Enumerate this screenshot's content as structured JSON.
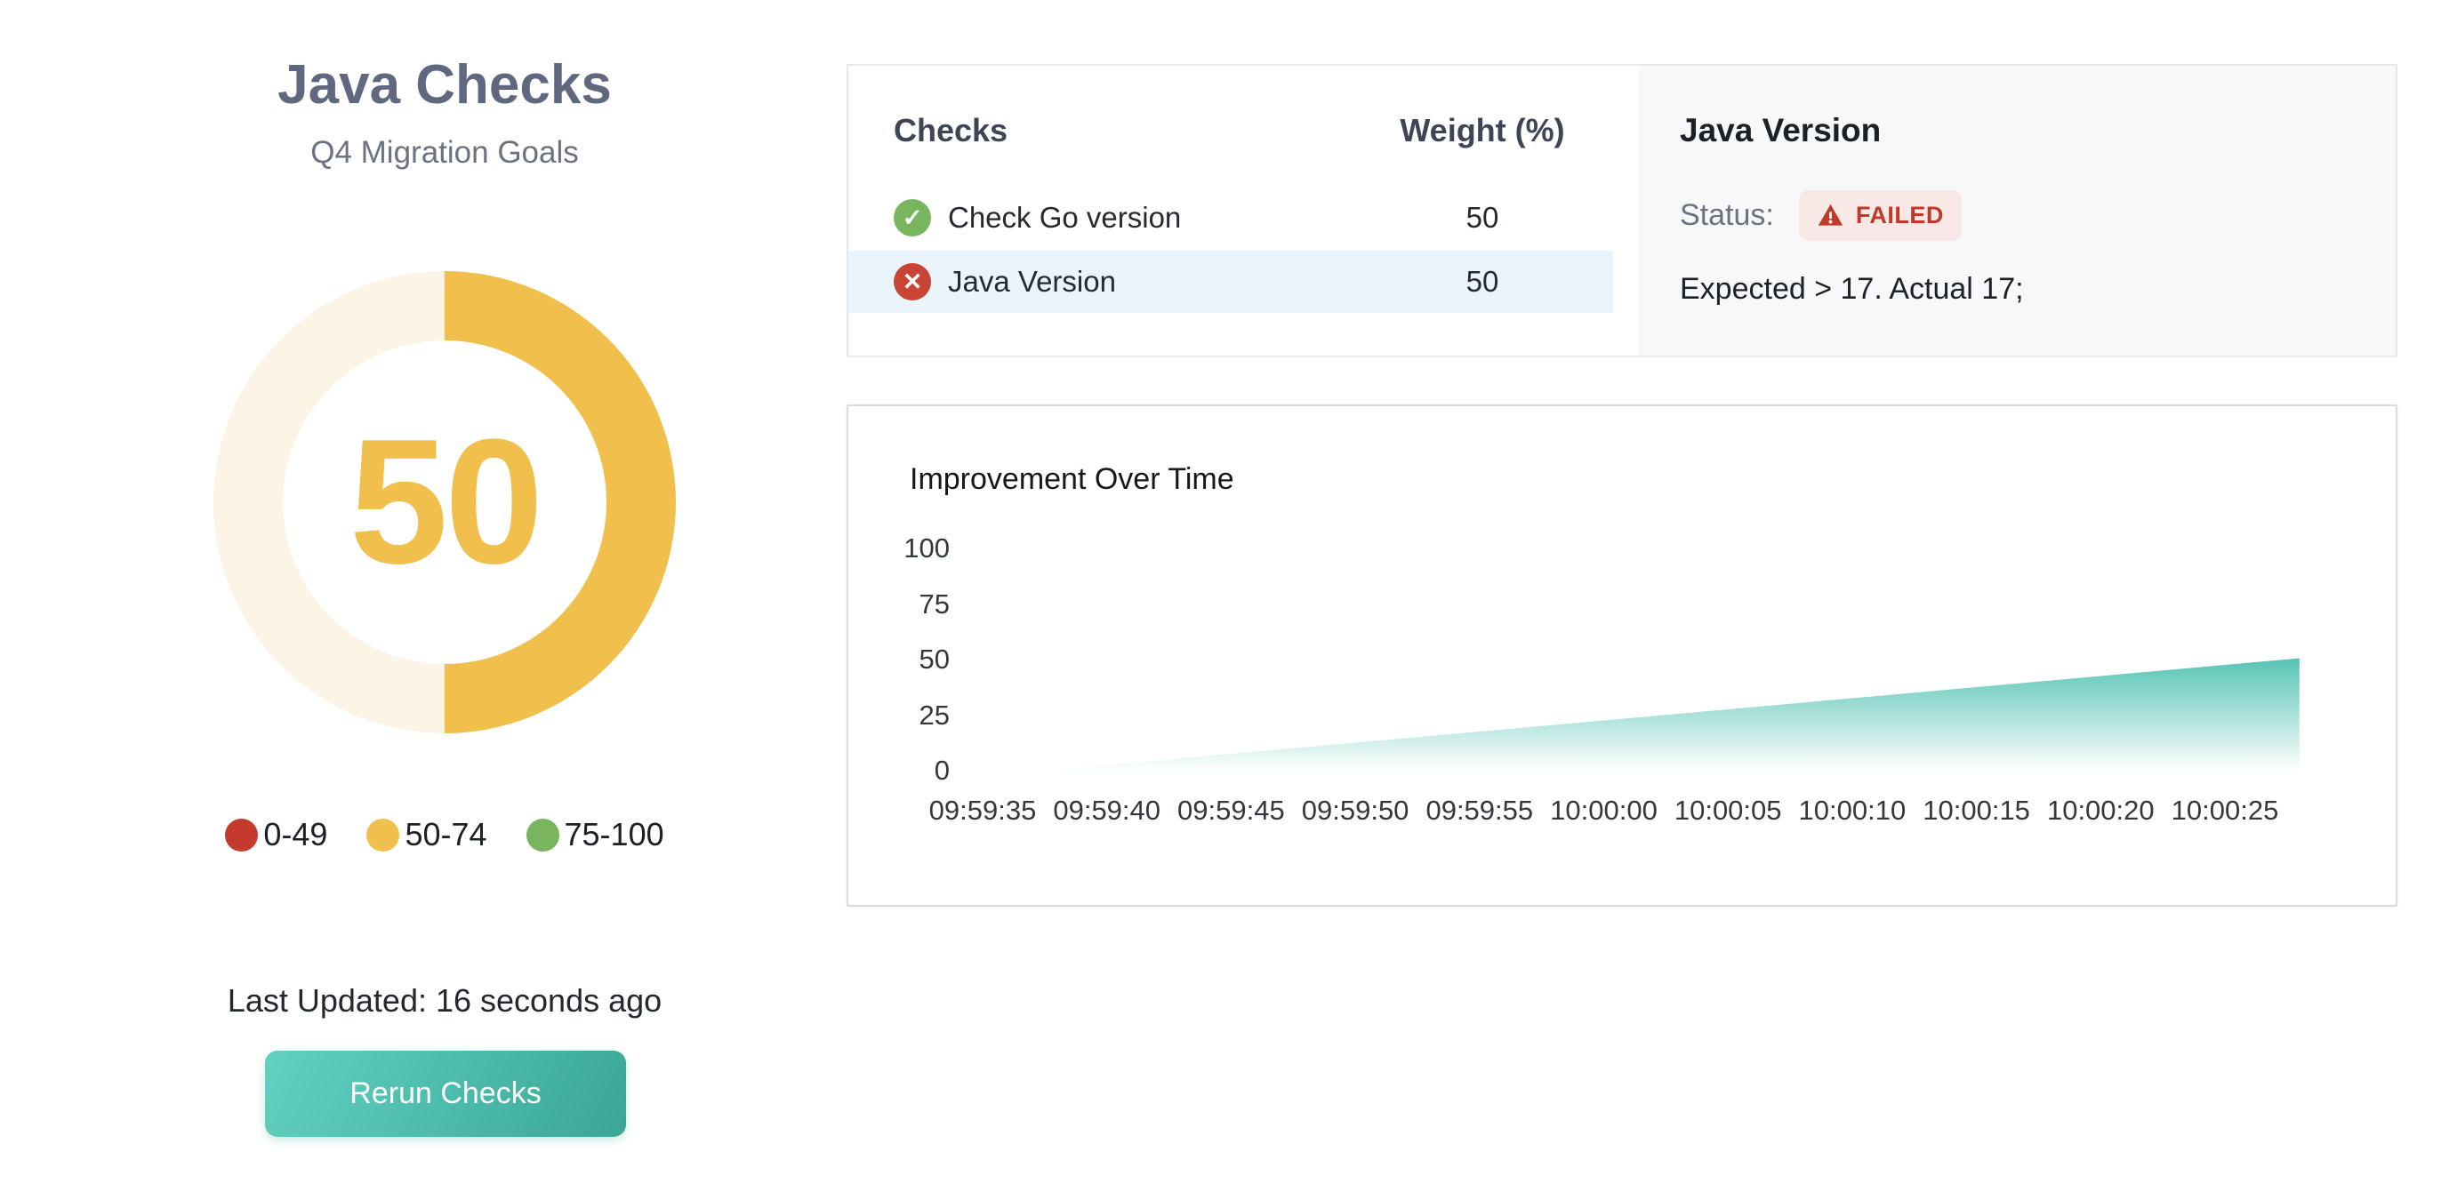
{
  "theme": {
    "title_color": "#606880",
    "subtitle_color": "#6b7280",
    "text_dark": "#23272f",
    "muted_text": "#6b7280",
    "amber": "#f1c04c",
    "amber_track": "#fcf4e4",
    "red": "#c43a2c",
    "green": "#79b55e",
    "teal_light": "#62d1c2",
    "teal_dark": "#3aa796",
    "row_highlight": "#e9f5fa",
    "detail_bg": "#f7f8f9",
    "badge_bg": "#f9e9e6",
    "badge_red": "#c0392b",
    "border_light": "#e5e7ea",
    "border_chart": "#d9dcdf",
    "area_teal": "#4ec0b1"
  },
  "left_panel": {
    "title": "Java Checks",
    "subtitle": "Q4 Migration Goals",
    "gauge": {
      "value": "50",
      "percent": 50,
      "fill_color": "#f1c04c",
      "track_color": "#fcf4e4"
    },
    "legend": [
      {
        "label": "0-49",
        "color": "#c43a2c"
      },
      {
        "label": "50-74",
        "color": "#f1c04c"
      },
      {
        "label": "75-100",
        "color": "#79b55e"
      }
    ],
    "last_updated": "Last Updated: 16 seconds ago",
    "rerun_button": "Rerun Checks"
  },
  "checks_panel": {
    "columns": {
      "name": "Checks",
      "weight": "Weight (%)"
    },
    "rows": [
      {
        "name": "Check Go version",
        "weight": "50",
        "status": "passed",
        "glyph": "✓",
        "icon_color": "#79b55e",
        "selected": false
      },
      {
        "name": "Java Version",
        "weight": "50",
        "status": "failed",
        "glyph": "✕",
        "icon_color": "#c94434",
        "selected": true
      }
    ]
  },
  "detail_panel": {
    "title": "Java Version",
    "status_label": "Status:",
    "status_badge": "FAILED",
    "message": "Expected > 17. Actual 17;"
  },
  "chart_data": {
    "type": "area",
    "title": "Improvement Over Time",
    "xlabel": "",
    "ylabel": "",
    "ylim": [
      0,
      100
    ],
    "grid": false,
    "legend_position": "none",
    "area_color": "#4ec0b1",
    "x_ticks": [
      "09:59:35",
      "09:59:40",
      "09:59:45",
      "09:59:50",
      "09:59:55",
      "10:00:00",
      "10:00:05",
      "10:00:10",
      "10:00:15",
      "10:00:20",
      "10:00:25"
    ],
    "y_ticks": [
      100,
      75,
      50,
      25,
      0
    ],
    "tick_interval_seconds": 5,
    "series": [
      {
        "name": "improvement",
        "points": [
          [
            "09:59:37",
            0
          ],
          [
            "09:59:40",
            3
          ],
          [
            "09:59:45",
            8
          ],
          [
            "09:59:50",
            13
          ],
          [
            "09:59:55",
            18
          ],
          [
            "10:00:00",
            23
          ],
          [
            "10:00:05",
            28
          ],
          [
            "10:00:10",
            33
          ],
          [
            "10:00:15",
            38
          ],
          [
            "10:00:20",
            43
          ],
          [
            "10:00:25",
            48
          ],
          [
            "10:00:28",
            51
          ]
        ]
      }
    ]
  }
}
